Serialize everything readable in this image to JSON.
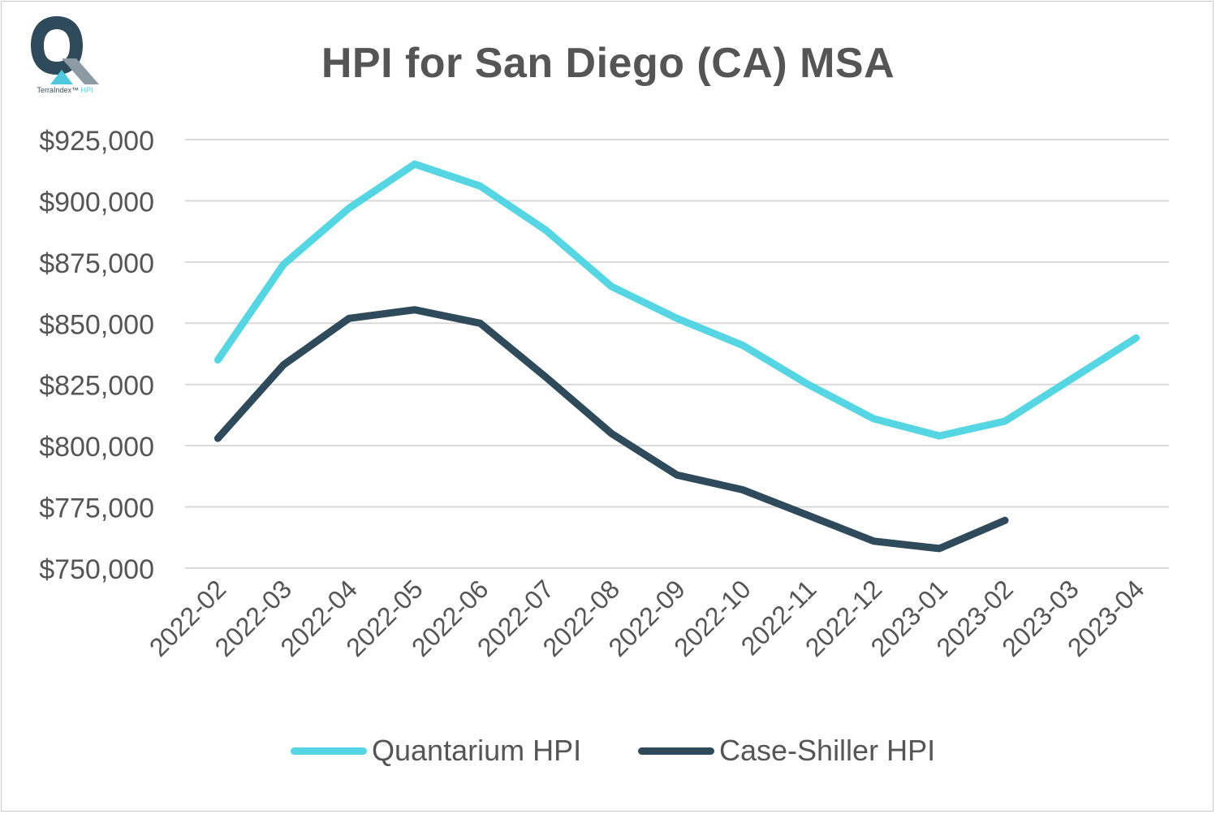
{
  "logo": {
    "letter": "Q",
    "brand": "TerraIndex",
    "trademark": "™",
    "product": "HPI",
    "colors": {
      "dark": "#2f4b5b",
      "accent": "#4fc9dd",
      "gray": "#8c9aa3"
    }
  },
  "chart_data": {
    "type": "line",
    "title": "HPI for San Diego (CA) MSA",
    "xlabel": "",
    "ylabel": "",
    "categories": [
      "2022-02",
      "2022-03",
      "2022-04",
      "2022-05",
      "2022-06",
      "2022-07",
      "2022-08",
      "2022-09",
      "2022-10",
      "2022-11",
      "2022-12",
      "2023-01",
      "2023-02",
      "2023-03",
      "2023-04"
    ],
    "ylim": [
      750000,
      925000
    ],
    "yticks": [
      750000,
      775000,
      800000,
      825000,
      850000,
      875000,
      900000,
      925000
    ],
    "ytick_labels": [
      "$750,000",
      "$775,000",
      "$800,000",
      "$825,000",
      "$850,000",
      "$875,000",
      "$900,000",
      "$925,000"
    ],
    "grid": true,
    "legend_position": "bottom",
    "series": [
      {
        "name": "Quantarium HPI",
        "color": "#55d6e2",
        "values": [
          835000,
          874000,
          897000,
          915000,
          906000,
          888000,
          865000,
          852000,
          841000,
          825000,
          811000,
          804000,
          810000,
          827000,
          844000
        ]
      },
      {
        "name": "Case-Shiller HPI",
        "color": "#2f4b5b",
        "values": [
          803000,
          833000,
          852000,
          855500,
          850000,
          828000,
          805000,
          788000,
          782000,
          771500,
          761000,
          758000,
          769500,
          null,
          null
        ]
      }
    ]
  }
}
